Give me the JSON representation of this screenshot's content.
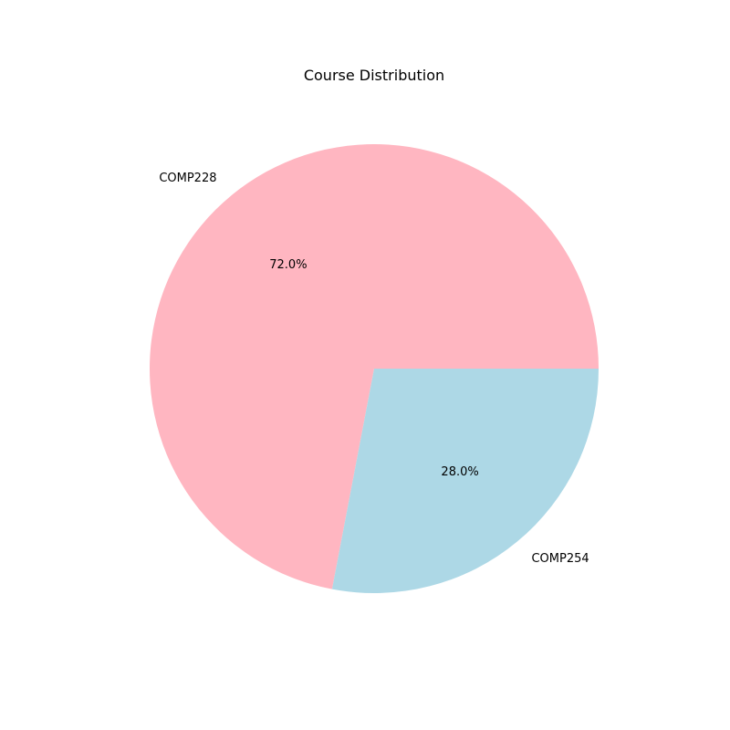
{
  "chart_data": {
    "type": "pie",
    "title": "Course Distribution",
    "categories": [
      "COMP228",
      "COMP254"
    ],
    "values": [
      72.0,
      28.0
    ],
    "percent_labels": [
      "72.0%",
      "28.0%"
    ],
    "colors": [
      "#ffb6c1",
      "#add8e6"
    ],
    "start_angle_deg": 0,
    "direction": "counterclockwise"
  }
}
